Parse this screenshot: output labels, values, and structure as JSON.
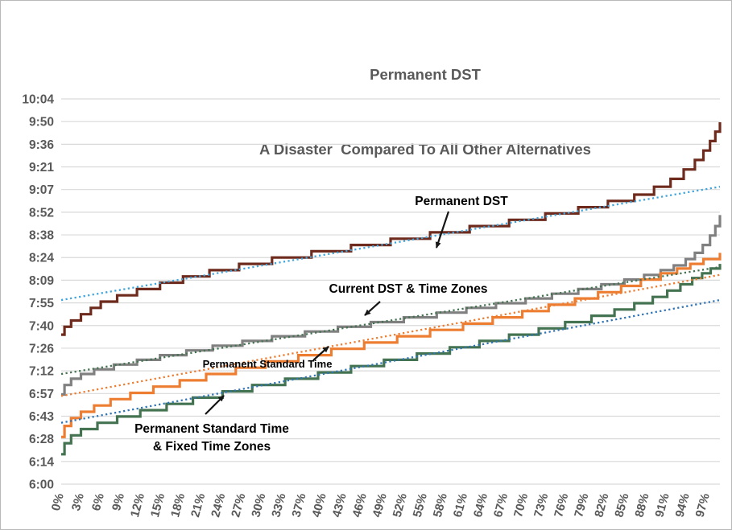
{
  "title": {
    "line1": "Permanent DST",
    "line2": "A Disaster  Compared To All Other Alternatives"
  },
  "chart_data": {
    "type": "line",
    "variant": "sorted-step-quantile-curves",
    "title": "Permanent DST — A Disaster Compared To All Other Alternatives",
    "legend": "inline annotations with arrows",
    "gridlines": "horizontal",
    "x_axis": {
      "unit": "percent of days",
      "tick_labels": [
        "0%",
        "3%",
        "6%",
        "9%",
        "12%",
        "15%",
        "18%",
        "21%",
        "24%",
        "27%",
        "30%",
        "33%",
        "37%",
        "40%",
        "43%",
        "46%",
        "49%",
        "52%",
        "55%",
        "58%",
        "61%",
        "64%",
        "67%",
        "70%",
        "73%",
        "76%",
        "79%",
        "82%",
        "85%",
        "88%",
        "91%",
        "94%",
        "97%"
      ]
    },
    "y_axis": {
      "unit": "sunrise time",
      "min": "6:00",
      "max": "10:04",
      "tick_interval_minutes": 14.4,
      "tick_labels_top_to_bottom": [
        "10:04",
        "9:50",
        "9:36",
        "9:21",
        "9:07",
        "8:52",
        "8:38",
        "8:24",
        "8:09",
        "7:55",
        "7:40",
        "7:26",
        "7:12",
        "6:57",
        "6:43",
        "6:28",
        "6:14",
        "6:00"
      ]
    },
    "series": [
      {
        "id": "permanent-dst",
        "label": "Permanent DST",
        "color": "#6E2A1C",
        "points": [
          [
            0,
            "7:35"
          ],
          [
            0.5,
            "7:40"
          ],
          [
            1.5,
            "7:44"
          ],
          [
            3,
            "7:48"
          ],
          [
            4.5,
            "7:52"
          ],
          [
            6,
            "7:56"
          ],
          [
            8.5,
            "8:00"
          ],
          [
            11.5,
            "8:04"
          ],
          [
            15,
            "8:08"
          ],
          [
            18.5,
            "8:12"
          ],
          [
            22.5,
            "8:16"
          ],
          [
            27,
            "8:20"
          ],
          [
            32,
            "8:24"
          ],
          [
            38,
            "8:28"
          ],
          [
            44,
            "8:32"
          ],
          [
            50,
            "8:36"
          ],
          [
            56,
            "8:40"
          ],
          [
            62,
            "8:44"
          ],
          [
            68,
            "8:48"
          ],
          [
            73.5,
            "8:52"
          ],
          [
            78.5,
            "8:56"
          ],
          [
            83,
            "9:00"
          ],
          [
            87,
            "9:04"
          ],
          [
            90,
            "9:09"
          ],
          [
            92.5,
            "9:14"
          ],
          [
            94.5,
            "9:20"
          ],
          [
            96.2,
            "9:26"
          ],
          [
            97.5,
            "9:32"
          ],
          [
            98.5,
            "9:38"
          ],
          [
            99.3,
            "9:44"
          ],
          [
            100,
            "9:50"
          ]
        ]
      },
      {
        "id": "current-dst",
        "label": "Current DST & Time Zones",
        "color": "#808080",
        "points": [
          [
            0,
            "6:57"
          ],
          [
            0.5,
            "7:03"
          ],
          [
            1.5,
            "7:07"
          ],
          [
            3,
            "7:10"
          ],
          [
            5,
            "7:13"
          ],
          [
            8,
            "7:16"
          ],
          [
            11.5,
            "7:19"
          ],
          [
            15,
            "7:22"
          ],
          [
            19,
            "7:25"
          ],
          [
            23,
            "7:28"
          ],
          [
            27.5,
            "7:31"
          ],
          [
            32,
            "7:34"
          ],
          [
            37,
            "7:37"
          ],
          [
            42,
            "7:40"
          ],
          [
            47,
            "7:43"
          ],
          [
            52,
            "7:46"
          ],
          [
            57,
            "7:49"
          ],
          [
            61.5,
            "7:52"
          ],
          [
            66,
            "7:55"
          ],
          [
            70.5,
            "7:58"
          ],
          [
            74.5,
            "8:01"
          ],
          [
            78.5,
            "8:04"
          ],
          [
            82,
            "8:07"
          ],
          [
            85.5,
            "8:10"
          ],
          [
            88.5,
            "8:13"
          ],
          [
            91,
            "8:16"
          ],
          [
            93,
            "8:19"
          ],
          [
            94.8,
            "8:23"
          ],
          [
            96.2,
            "8:27"
          ],
          [
            97.4,
            "8:32"
          ],
          [
            98.5,
            "8:38"
          ],
          [
            99.3,
            "8:44"
          ],
          [
            100,
            "8:51"
          ]
        ]
      },
      {
        "id": "permanent-standard",
        "label": "Permanent Standard Time",
        "color": "#ED7D31",
        "points": [
          [
            0,
            "6:30"
          ],
          [
            0.5,
            "6:37"
          ],
          [
            1.5,
            "6:42"
          ],
          [
            3,
            "6:46"
          ],
          [
            5,
            "6:50"
          ],
          [
            7.5,
            "6:54"
          ],
          [
            10.5,
            "6:58"
          ],
          [
            14,
            "7:02"
          ],
          [
            18,
            "7:06"
          ],
          [
            22,
            "7:10"
          ],
          [
            26.5,
            "7:14"
          ],
          [
            31,
            "7:18"
          ],
          [
            36,
            "7:22"
          ],
          [
            41,
            "7:26"
          ],
          [
            46,
            "7:30"
          ],
          [
            51,
            "7:34"
          ],
          [
            56,
            "7:38"
          ],
          [
            61,
            "7:42"
          ],
          [
            65.5,
            "7:46"
          ],
          [
            70,
            "7:50"
          ],
          [
            74,
            "7:54"
          ],
          [
            78,
            "7:58"
          ],
          [
            81.5,
            "8:02"
          ],
          [
            85,
            "8:06"
          ],
          [
            88,
            "8:10"
          ],
          [
            91,
            "8:14"
          ],
          [
            93.5,
            "8:17"
          ],
          [
            95.5,
            "8:20"
          ],
          [
            97.5,
            "8:23"
          ],
          [
            100,
            "8:27"
          ]
        ]
      },
      {
        "id": "permanent-standard-fixed",
        "label": "Permanent Standard Time & Fixed Time Zones",
        "color": "#447351",
        "points": [
          [
            0,
            "6:19"
          ],
          [
            0.5,
            "6:26"
          ],
          [
            1.5,
            "6:31"
          ],
          [
            3,
            "6:35"
          ],
          [
            5.5,
            "6:39"
          ],
          [
            8.5,
            "6:43"
          ],
          [
            12,
            "6:47"
          ],
          [
            16,
            "6:51"
          ],
          [
            20,
            "6:55"
          ],
          [
            24.5,
            "6:59"
          ],
          [
            29,
            "7:03"
          ],
          [
            34,
            "7:07"
          ],
          [
            39,
            "7:11"
          ],
          [
            44,
            "7:15"
          ],
          [
            49,
            "7:19"
          ],
          [
            54,
            "7:23"
          ],
          [
            59,
            "7:27"
          ],
          [
            63.5,
            "7:31"
          ],
          [
            68,
            "7:35"
          ],
          [
            72.5,
            "7:39"
          ],
          [
            76.5,
            "7:43"
          ],
          [
            80.5,
            "7:47"
          ],
          [
            84,
            "7:51"
          ],
          [
            87,
            "7:55"
          ],
          [
            89.8,
            "7:59"
          ],
          [
            92,
            "8:03"
          ],
          [
            94,
            "8:07"
          ],
          [
            95.8,
            "8:11"
          ],
          [
            97.3,
            "8:14"
          ],
          [
            98.6,
            "8:17"
          ],
          [
            100,
            "8:20"
          ]
        ]
      }
    ],
    "trendlines": [
      {
        "id": "trend-permanent-dst",
        "for": "Permanent DST",
        "style": "dotted",
        "color": "#3FA5DC",
        "start": [
          0,
          "7:57"
        ],
        "end": [
          100,
          "9:09"
        ]
      },
      {
        "id": "trend-current-dst",
        "for": "Current DST & Time Zones",
        "style": "dotted",
        "color": "#447351",
        "start": [
          0,
          "7:10"
        ],
        "end": [
          100,
          "8:18"
        ]
      },
      {
        "id": "trend-permanent-standard",
        "for": "Permanent Standard Time",
        "style": "dotted",
        "color": "#ED7D31",
        "start": [
          0,
          "6:56"
        ],
        "end": [
          100,
          "8:13"
        ]
      },
      {
        "id": "trend-permanent-standard-fixed",
        "for": "Permanent Standard Time & Fixed Time Zones",
        "style": "dotted",
        "color": "#2E74B5",
        "start": [
          0,
          "6:39"
        ],
        "end": [
          100,
          "7:57"
        ]
      }
    ],
    "annotations": [
      {
        "id": "permanent-dst",
        "lines": [
          "Permanent DST"
        ],
        "color": "#000000"
      },
      {
        "id": "current-dst",
        "lines": [
          "Current DST & Time Zones"
        ],
        "color": "#000000"
      },
      {
        "id": "permanent-standard",
        "lines": [
          "Permanent Standard Time"
        ],
        "color": "#000000"
      },
      {
        "id": "permanent-standard-fixed",
        "lines": [
          "Permanent Standard Time",
          "& Fixed Time Zones"
        ],
        "color": "#000000"
      }
    ],
    "style_hints": {
      "grid_color": "#D9D9D9",
      "axis_text_color": "#595959",
      "background": "#FFFFFF"
    }
  }
}
